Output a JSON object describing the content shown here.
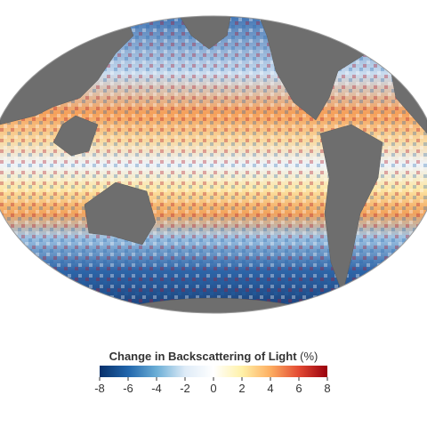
{
  "colorbar": {
    "title": "Change in Backscattering of Light",
    "unit": "(%)",
    "lim": [
      -8,
      8
    ],
    "ticks": [
      -8,
      -6,
      -4,
      -2,
      0,
      2,
      4,
      6,
      8
    ],
    "colors": [
      "#08306b",
      "#2166ac",
      "#6baed6",
      "#deebf7",
      "#ffffff",
      "#fff1a8",
      "#fdae61",
      "#e34a33",
      "#99000d"
    ]
  }
}
